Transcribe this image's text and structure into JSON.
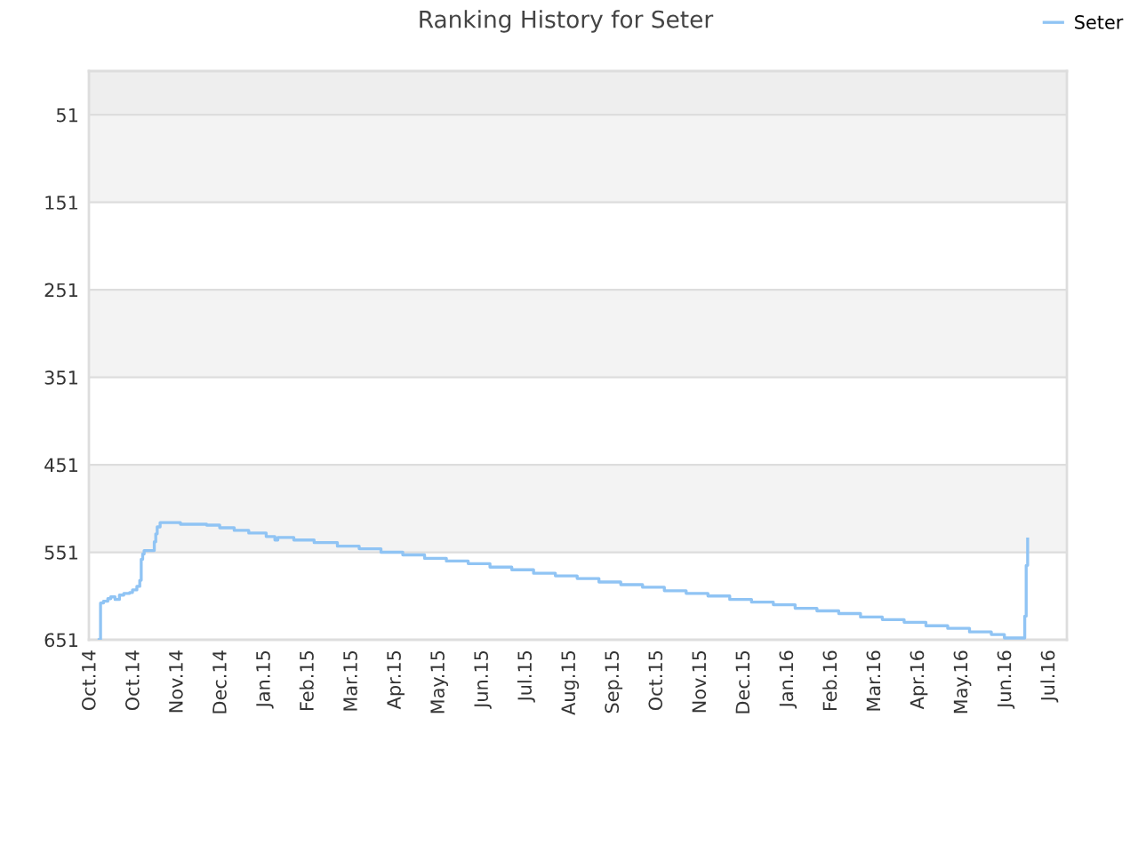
{
  "chart_data": {
    "type": "step",
    "title": "Ranking History for Seter",
    "x": [
      "2014-10-07",
      "2014-10-08",
      "2014-10-10",
      "2014-10-13",
      "2014-10-15",
      "2014-10-18",
      "2014-10-21",
      "2014-10-24",
      "2014-10-28",
      "2014-10-30",
      "2014-11-02",
      "2014-11-04",
      "2014-11-05",
      "2014-11-06",
      "2014-11-07",
      "2014-11-14",
      "2014-11-15",
      "2014-11-16",
      "2014-11-18",
      "2014-12-02",
      "2014-12-20",
      "2014-12-29",
      "2015-01-08",
      "2015-01-18",
      "2015-01-30",
      "2015-02-05",
      "2015-02-07",
      "2015-02-18",
      "2015-03-04",
      "2015-03-20",
      "2015-04-04",
      "2015-04-19",
      "2015-05-04",
      "2015-05-19",
      "2015-06-03",
      "2015-06-18",
      "2015-07-03",
      "2015-07-18",
      "2015-08-02",
      "2015-08-17",
      "2015-09-01",
      "2015-09-16",
      "2015-10-01",
      "2015-10-16",
      "2015-10-31",
      "2015-11-15",
      "2015-11-30",
      "2015-12-15",
      "2015-12-30",
      "2016-01-14",
      "2016-01-29",
      "2016-02-13",
      "2016-02-28",
      "2016-03-14",
      "2016-03-29",
      "2016-04-13",
      "2016-04-28",
      "2016-05-13",
      "2016-05-28",
      "2016-06-12",
      "2016-06-21",
      "2016-07-05",
      "2016-07-06",
      "2016-07-07"
    ],
    "series": [
      {
        "name": "Seter",
        "color": "#90c4f4",
        "values": [
          651,
          609,
          607,
          604,
          602,
          605,
          600,
          598,
          597,
          594,
          590,
          583,
          559,
          553,
          549,
          539,
          530,
          522,
          517,
          519,
          520,
          523,
          526,
          529,
          533,
          537,
          534,
          537,
          540,
          544,
          547,
          551,
          554,
          558,
          561,
          564,
          568,
          571,
          575,
          578,
          581,
          585,
          588,
          591,
          595,
          598,
          601,
          605,
          608,
          611,
          615,
          618,
          621,
          625,
          628,
          631,
          635,
          638,
          642,
          645,
          649,
          624,
          566,
          536
        ]
      }
    ],
    "xlim": [
      "2014-09-30",
      "2016-08-03"
    ],
    "xticks": [
      {
        "value": "2014-10-01",
        "label": "Oct.14"
      },
      {
        "value": "2014-10-31",
        "label": "Oct.14"
      },
      {
        "value": "2014-11-30",
        "label": "Nov.14"
      },
      {
        "value": "2014-12-30",
        "label": "Dec.14"
      },
      {
        "value": "2015-01-29",
        "label": "Jan.15"
      },
      {
        "value": "2015-02-28",
        "label": "Feb.15"
      },
      {
        "value": "2015-03-30",
        "label": "Mar.15"
      },
      {
        "value": "2015-04-29",
        "label": "Apr.15"
      },
      {
        "value": "2015-05-29",
        "label": "May.15"
      },
      {
        "value": "2015-06-28",
        "label": "Jun.15"
      },
      {
        "value": "2015-07-28",
        "label": "Jul.15"
      },
      {
        "value": "2015-08-27",
        "label": "Aug.15"
      },
      {
        "value": "2015-09-26",
        "label": "Sep.15"
      },
      {
        "value": "2015-10-26",
        "label": "Oct.15"
      },
      {
        "value": "2015-11-25",
        "label": "Nov.15"
      },
      {
        "value": "2015-12-25",
        "label": "Dec.15"
      },
      {
        "value": "2016-01-24",
        "label": "Jan.16"
      },
      {
        "value": "2016-02-23",
        "label": "Feb.16"
      },
      {
        "value": "2016-03-24",
        "label": "Mar.16"
      },
      {
        "value": "2016-04-23",
        "label": "Apr.16"
      },
      {
        "value": "2016-05-23",
        "label": "May.16"
      },
      {
        "value": "2016-06-22",
        "label": "Jun.16"
      },
      {
        "value": "2016-07-22",
        "label": "Jul.16"
      }
    ],
    "ylim": [
      651,
      1
    ],
    "yticks": [
      51,
      151,
      251,
      351,
      451,
      551,
      651
    ],
    "bands": [
      {
        "axis": "y",
        "from": 1,
        "to": 51,
        "color": "#eeeeee"
      },
      {
        "axis": "y",
        "from": 51,
        "to": 151,
        "color": "#f3f3f3"
      },
      {
        "axis": "y",
        "from": 251,
        "to": 351,
        "color": "#f3f3f3"
      },
      {
        "axis": "y",
        "from": 451,
        "to": 551,
        "color": "#f3f3f3"
      }
    ],
    "grid": "y",
    "legend": "top right"
  }
}
